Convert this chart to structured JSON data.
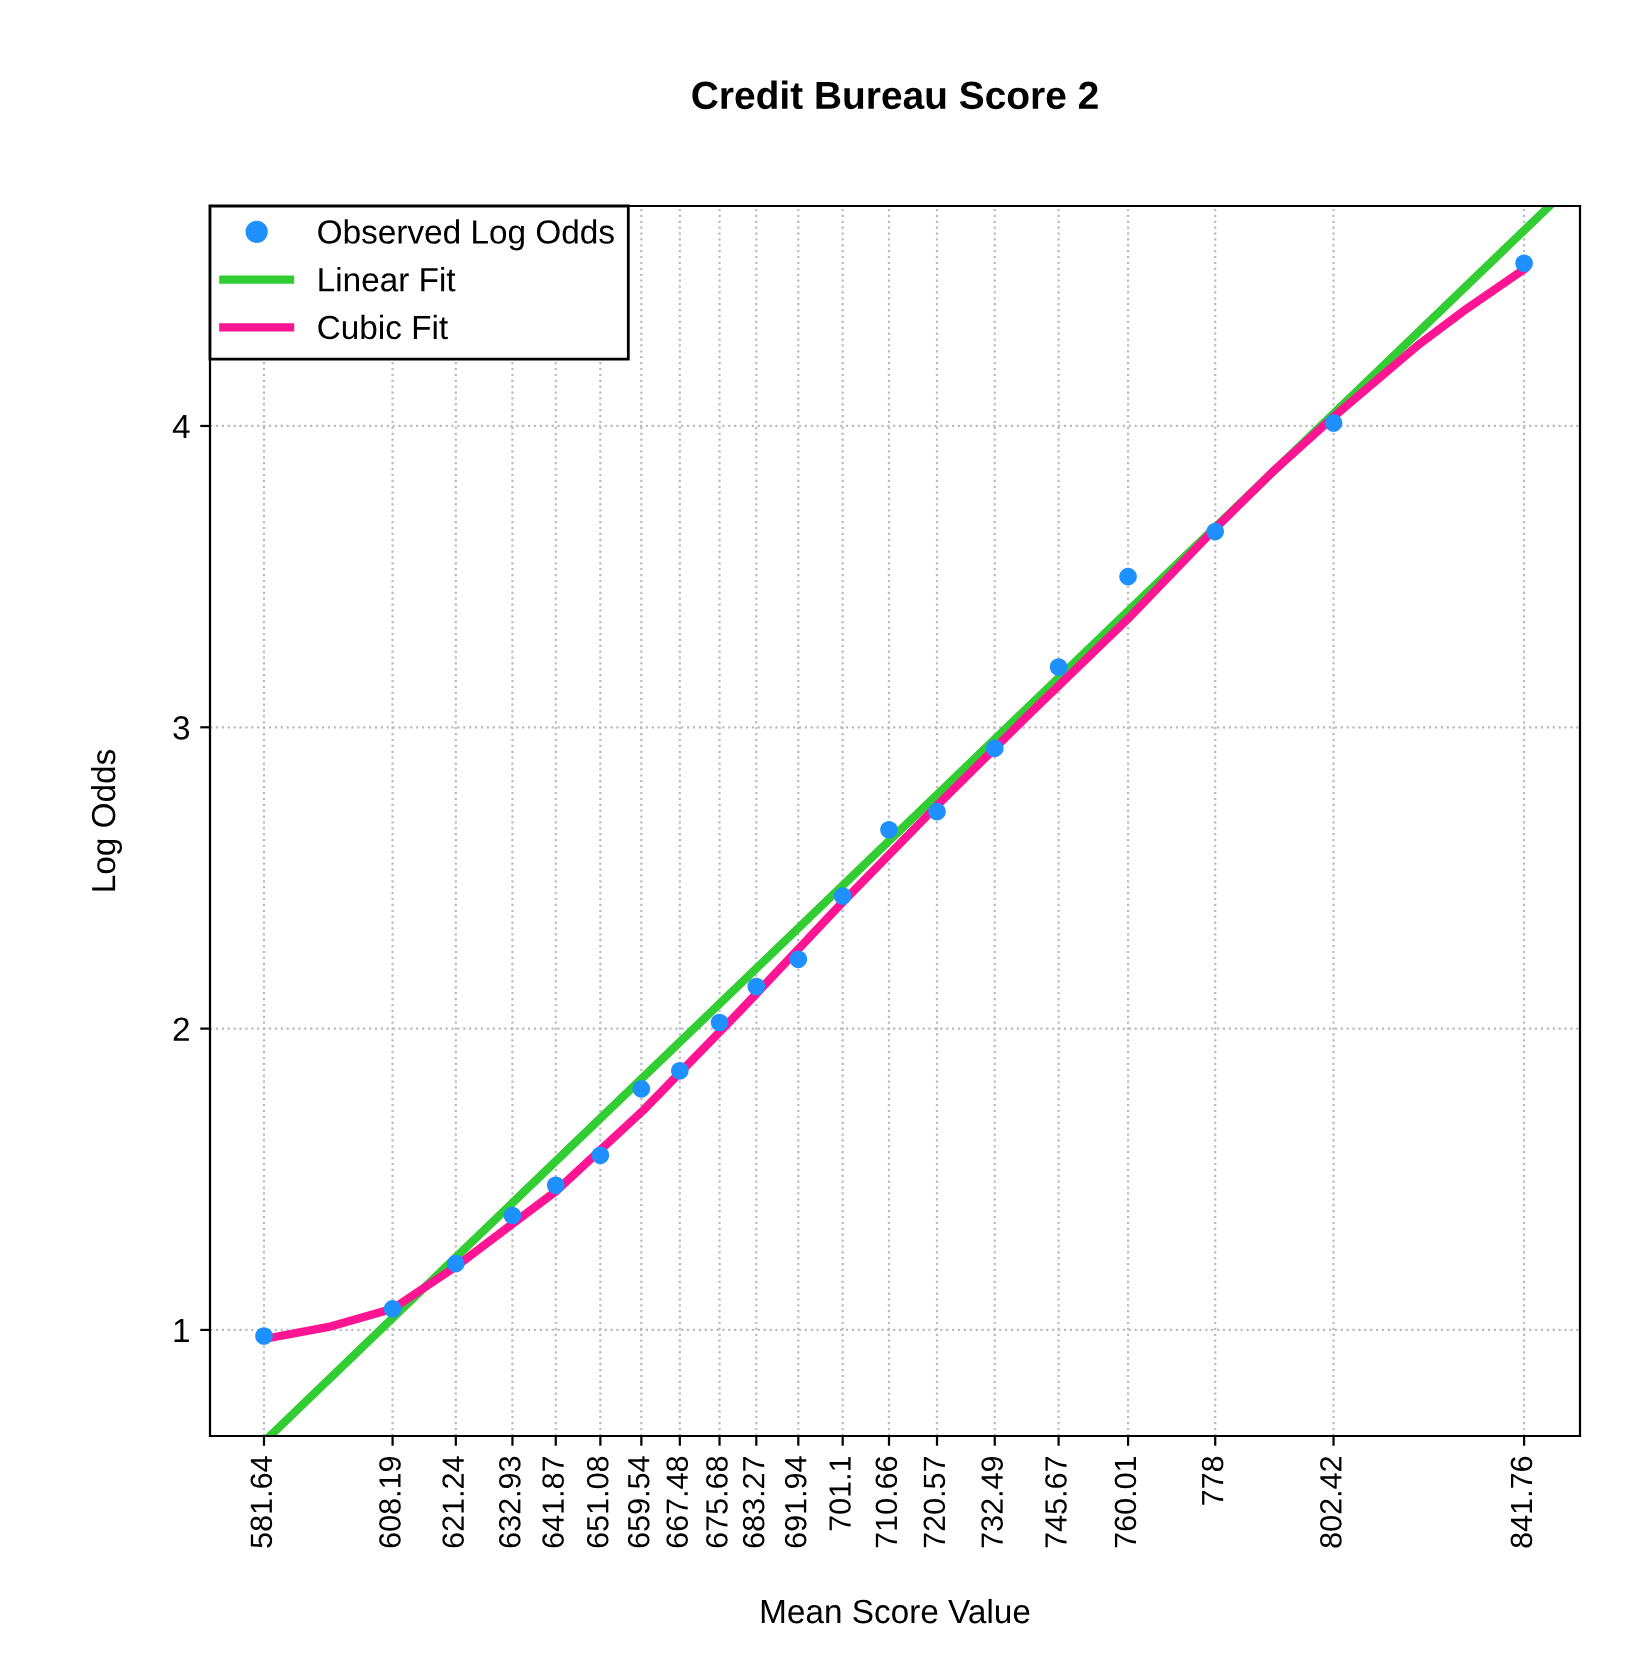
{
  "chart_data": {
    "type": "scatter",
    "title": "Credit Bureau Score 2",
    "xlabel": "Mean Score Value",
    "ylabel": "Log Odds",
    "xlim": [
      570.5,
      853.3
    ],
    "ylim": [
      0.648,
      4.73
    ],
    "xticks": [
      581.64,
      608.19,
      621.24,
      632.93,
      641.87,
      651.08,
      659.54,
      667.48,
      675.68,
      683.27,
      691.94,
      701.1,
      710.66,
      720.57,
      732.49,
      745.67,
      760.01,
      778,
      802.42,
      841.76
    ],
    "yticks": [
      1,
      2,
      3,
      4
    ],
    "grid": true,
    "legend": "top left",
    "series": [
      {
        "name": "Observed Log Odds",
        "marker": "circle",
        "color": "#1e90ff",
        "x": [
          581.64,
          608.19,
          621.24,
          632.93,
          641.87,
          651.08,
          659.54,
          667.48,
          675.68,
          683.27,
          691.94,
          701.1,
          710.66,
          720.57,
          732.49,
          745.67,
          760.01,
          778,
          802.42,
          841.76
        ],
        "values": [
          0.98,
          1.07,
          1.22,
          1.38,
          1.48,
          1.58,
          1.8,
          1.86,
          2.02,
          2.14,
          2.23,
          2.44,
          2.66,
          2.72,
          2.93,
          3.2,
          3.5,
          3.65,
          4.01,
          4.54
        ]
      },
      {
        "name": "Linear Fit",
        "type": "line",
        "marker": "none",
        "color": "#32cd32",
        "x": [
          583,
          847
        ],
        "values": [
          0.65,
          4.73
        ]
      },
      {
        "name": "Cubic Fit",
        "type": "line",
        "marker": "none",
        "color": "#ff1493",
        "x": [
          581.64,
          595,
          608.19,
          621.24,
          641.87,
          660,
          680,
          701.1,
          720.57,
          740,
          760,
          778,
          790,
          802.42,
          820,
          830,
          841.76
        ],
        "values": [
          0.97,
          1.01,
          1.07,
          1.21,
          1.46,
          1.73,
          2.06,
          2.42,
          2.74,
          3.05,
          3.36,
          3.66,
          3.85,
          4.03,
          4.27,
          4.39,
          4.52
        ]
      }
    ]
  }
}
